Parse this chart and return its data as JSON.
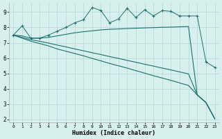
{
  "xlabel": "Humidex (Indice chaleur)",
  "xlim": [
    -0.5,
    23.5
  ],
  "ylim": [
    1.8,
    9.6
  ],
  "yticks": [
    2,
    3,
    4,
    5,
    6,
    7,
    8,
    9
  ],
  "xticks": [
    0,
    1,
    2,
    3,
    4,
    5,
    6,
    7,
    8,
    9,
    10,
    11,
    12,
    13,
    14,
    15,
    16,
    17,
    18,
    19,
    20,
    21,
    22,
    23
  ],
  "bg_color": "#d8f0ed",
  "grid_color": "#b2d8d4",
  "line_color": "#1a7070",
  "line1_x": [
    0,
    1,
    2,
    3,
    4,
    5,
    6,
    7,
    8,
    9,
    10,
    11,
    12,
    13,
    14,
    15,
    16,
    17,
    18,
    19,
    20,
    21,
    22,
    23
  ],
  "line1_y": [
    7.5,
    8.1,
    7.3,
    7.3,
    7.5,
    7.75,
    8.0,
    8.3,
    8.5,
    9.3,
    9.1,
    8.3,
    8.55,
    9.25,
    8.65,
    9.15,
    8.75,
    9.1,
    9.05,
    8.75,
    8.75,
    8.75,
    5.75,
    5.4
  ],
  "line2_x": [
    0,
    1,
    2,
    3,
    4,
    5,
    6,
    7,
    8,
    9,
    10,
    11,
    12,
    13,
    14,
    15,
    16,
    17,
    18,
    19,
    20,
    21,
    22,
    23
  ],
  "line2_y": [
    7.5,
    7.45,
    7.3,
    7.3,
    7.35,
    7.45,
    7.55,
    7.65,
    7.72,
    7.78,
    7.84,
    7.88,
    7.9,
    7.93,
    7.95,
    7.97,
    7.99,
    8.01,
    8.02,
    8.04,
    8.06,
    3.6,
    3.1,
    2.05
  ],
  "line3_x": [
    0,
    1,
    2,
    3,
    4,
    5,
    6,
    7,
    8,
    9,
    10,
    11,
    12,
    13,
    14,
    15,
    16,
    17,
    18,
    19,
    20,
    21,
    22,
    23
  ],
  "line3_y": [
    7.5,
    7.35,
    7.2,
    7.1,
    6.98,
    6.85,
    6.73,
    6.6,
    6.48,
    6.35,
    6.23,
    6.1,
    5.98,
    5.85,
    5.73,
    5.6,
    5.48,
    5.35,
    5.23,
    5.1,
    4.97,
    3.6,
    3.1,
    2.05
  ],
  "line4_x": [
    0,
    1,
    2,
    3,
    4,
    5,
    6,
    7,
    8,
    9,
    10,
    11,
    12,
    13,
    14,
    15,
    16,
    17,
    18,
    19,
    20,
    21,
    22,
    23
  ],
  "line4_y": [
    7.5,
    7.3,
    7.1,
    6.95,
    6.8,
    6.6,
    6.45,
    6.3,
    6.15,
    5.98,
    5.82,
    5.65,
    5.5,
    5.35,
    5.18,
    5.02,
    4.85,
    4.7,
    4.55,
    4.38,
    4.22,
    3.6,
    3.1,
    2.05
  ]
}
